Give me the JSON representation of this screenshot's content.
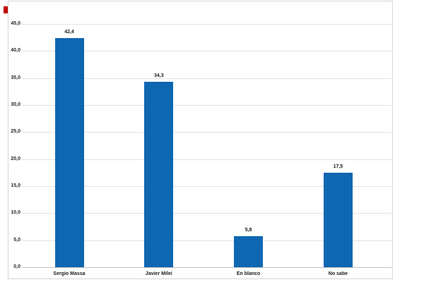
{
  "page": {
    "background": "#ffffff"
  },
  "marker": {
    "name": "red-square-marker",
    "color": "#c00000"
  },
  "chart_data": {
    "type": "bar",
    "title": "",
    "xlabel": "",
    "ylabel": "",
    "categories": [
      "Sergio Massa",
      "Javier Milei",
      "En blanco",
      "No sabe"
    ],
    "values": [
      42.4,
      34.3,
      5.8,
      17.5
    ],
    "value_labels": [
      "42,4",
      "34,3",
      "5,8",
      "17,5"
    ],
    "ylim": [
      0,
      45
    ],
    "y_tick_step": 5,
    "y_tick_labels": [
      "0,0",
      "5,0",
      "10,0",
      "15,0",
      "20,0",
      "25,0",
      "30,0",
      "35,0",
      "40,0",
      "45,0"
    ],
    "grid": true,
    "legend": false,
    "decimal_separator": ",",
    "bar_color": "#0f67b2",
    "gridline_color": "#e2e2e2",
    "axis_line_color": "#bfbfbf",
    "text_color": "#1a1a1a",
    "canvas_border_color": "#d7d7d7"
  }
}
